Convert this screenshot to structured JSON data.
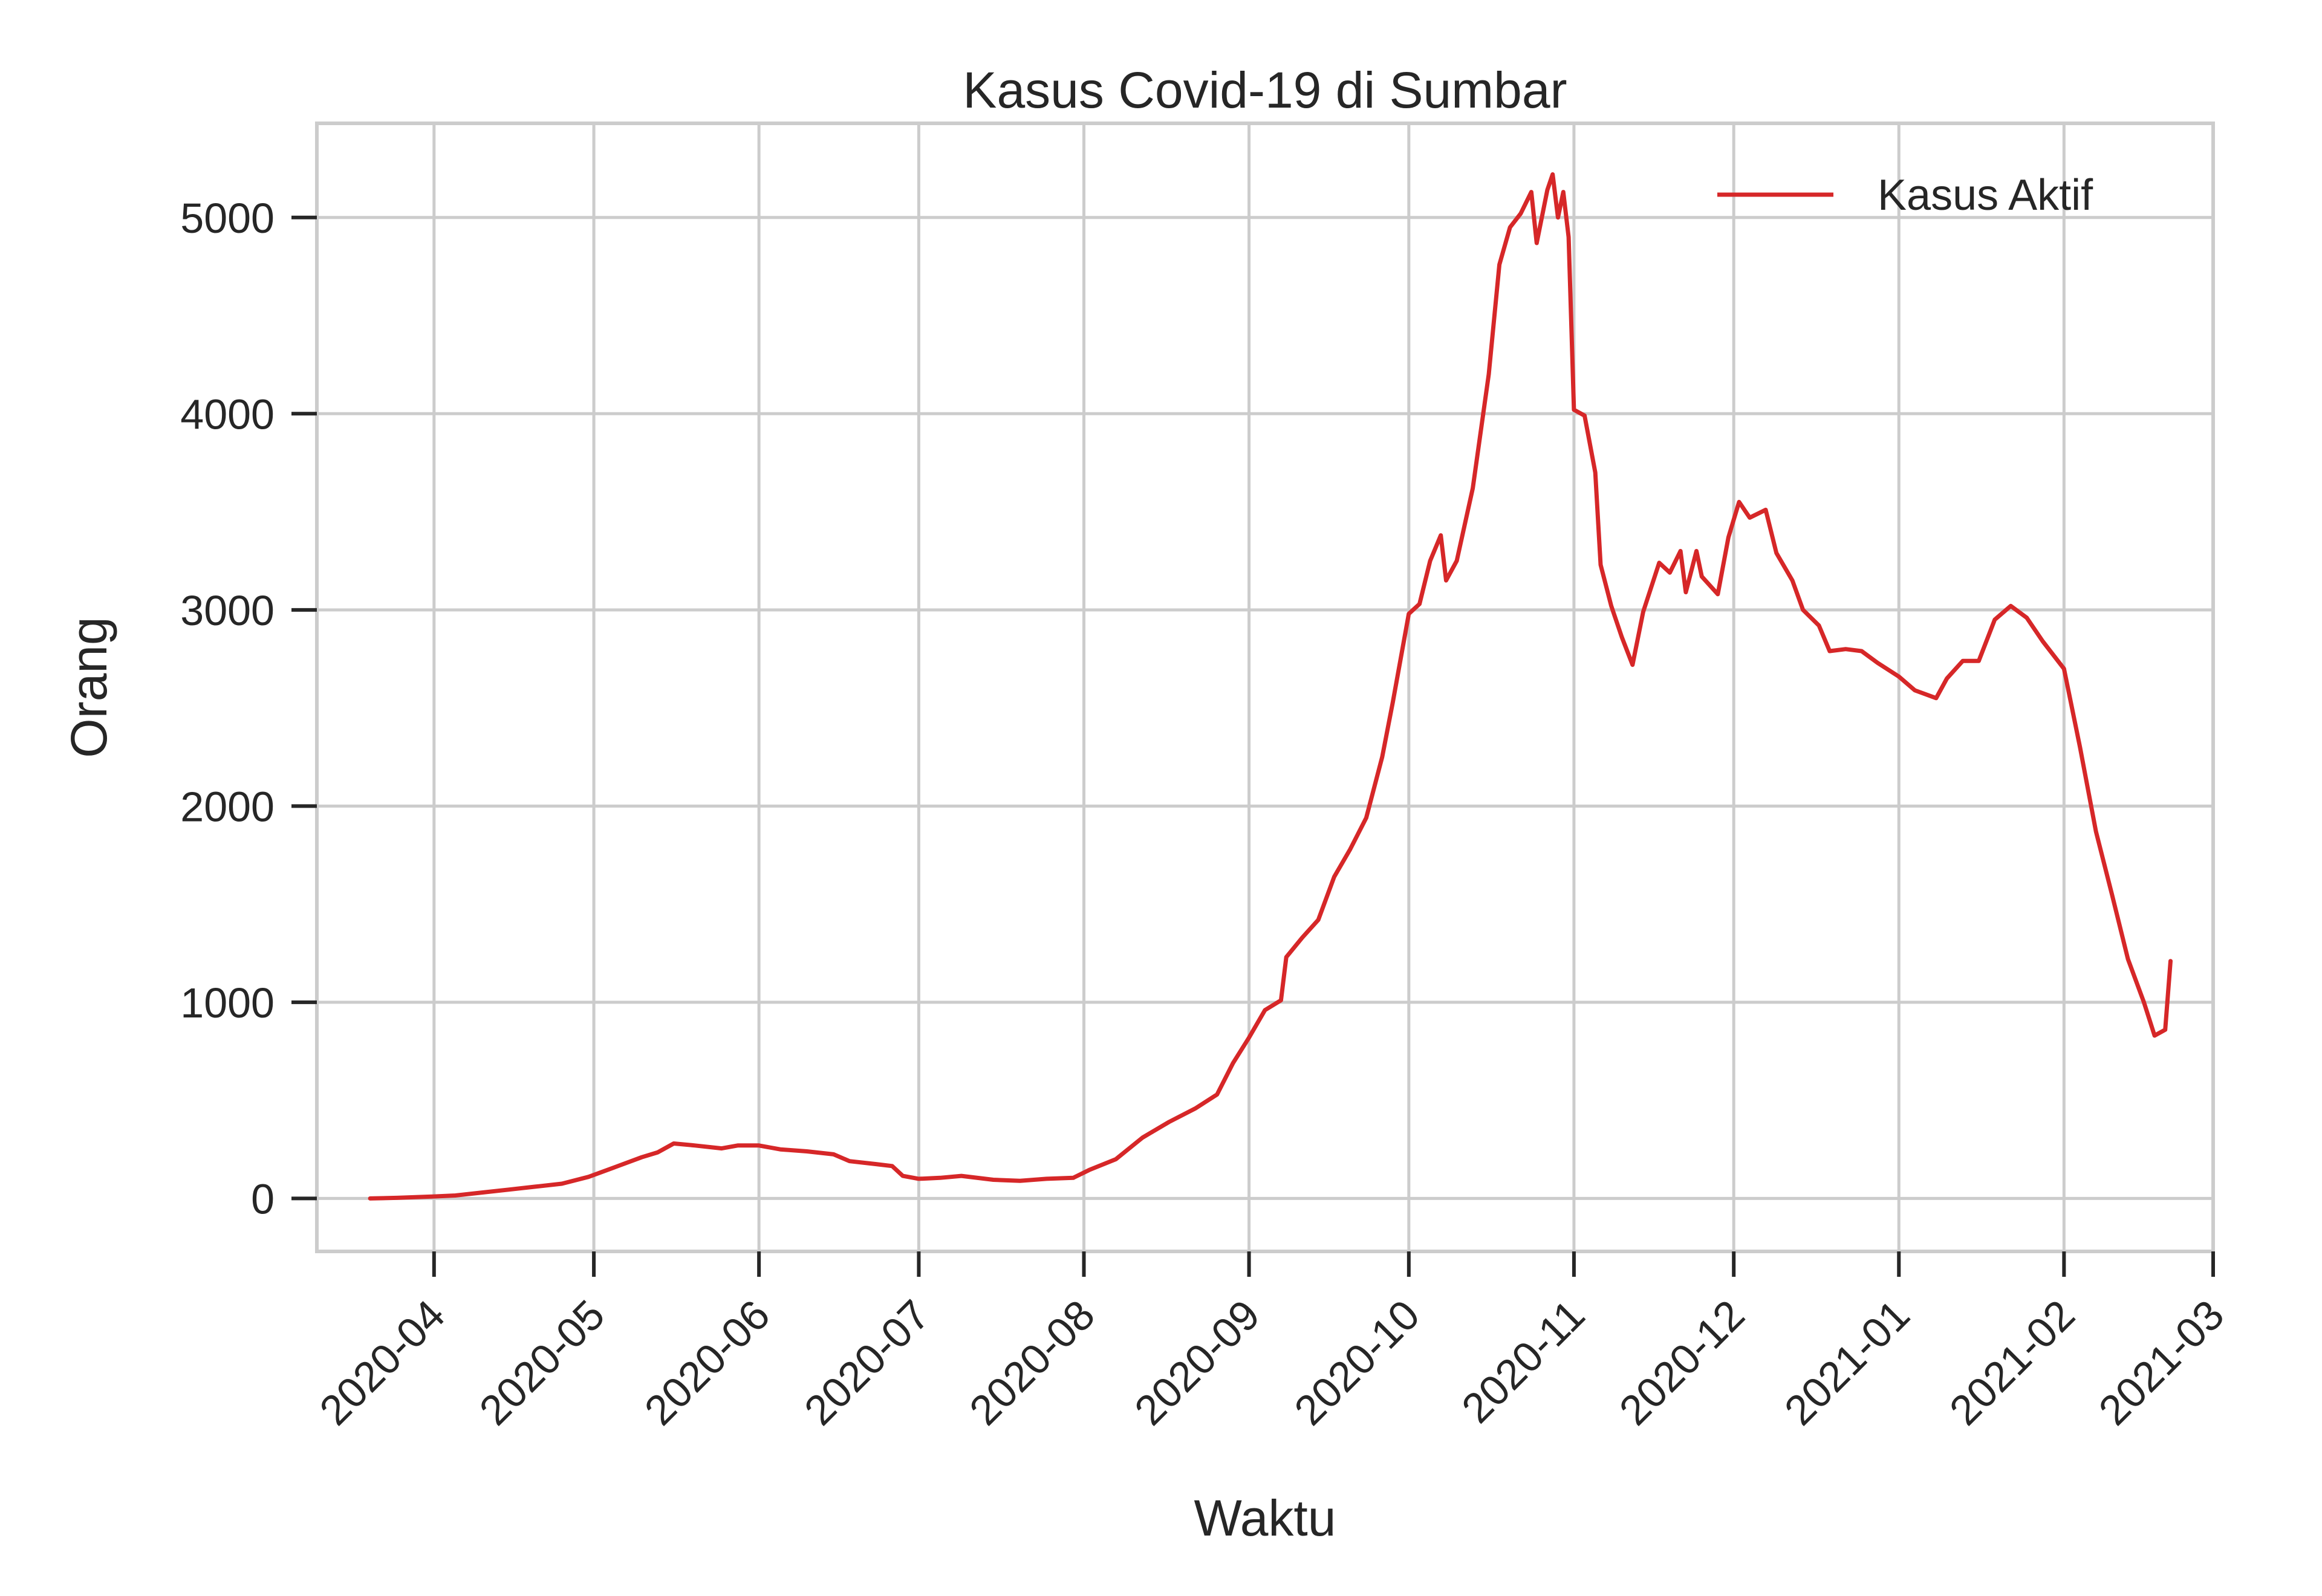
{
  "chart_data": {
    "type": "line",
    "title": "Kasus Covid-19 di Sumbar",
    "xlabel": "Waktu",
    "ylabel": "Orang",
    "x_ticks": [
      "2020-04",
      "2020-05",
      "2020-06",
      "2020-07",
      "2020-08",
      "2020-09",
      "2020-10",
      "2020-11",
      "2020-12",
      "2021-01",
      "2021-02",
      "2021-03"
    ],
    "y_ticks": [
      0,
      1000,
      2000,
      3000,
      4000,
      5000
    ],
    "xlim": [
      "2020-03-10",
      "2021-03-01"
    ],
    "ylim": [
      -270,
      5480
    ],
    "grid": true,
    "legend": {
      "position": "top-right"
    },
    "series": [
      {
        "name": "Kasus Aktif",
        "color": "#d62728",
        "points": [
          [
            "2020-03-20",
            0
          ],
          [
            "2020-03-25",
            3
          ],
          [
            "2020-04-01",
            10
          ],
          [
            "2020-04-05",
            15
          ],
          [
            "2020-04-10",
            30
          ],
          [
            "2020-04-15",
            45
          ],
          [
            "2020-04-20",
            60
          ],
          [
            "2020-04-25",
            75
          ],
          [
            "2020-04-30",
            110
          ],
          [
            "2020-05-05",
            160
          ],
          [
            "2020-05-10",
            210
          ],
          [
            "2020-05-13",
            235
          ],
          [
            "2020-05-16",
            280
          ],
          [
            "2020-05-20",
            270
          ],
          [
            "2020-05-25",
            255
          ],
          [
            "2020-05-28",
            270
          ],
          [
            "2020-06-01",
            270
          ],
          [
            "2020-06-05",
            250
          ],
          [
            "2020-06-10",
            240
          ],
          [
            "2020-06-15",
            225
          ],
          [
            "2020-06-18",
            190
          ],
          [
            "2020-06-23",
            175
          ],
          [
            "2020-06-26",
            165
          ],
          [
            "2020-06-28",
            115
          ],
          [
            "2020-07-01",
            100
          ],
          [
            "2020-07-05",
            105
          ],
          [
            "2020-07-09",
            115
          ],
          [
            "2020-07-15",
            95
          ],
          [
            "2020-07-20",
            90
          ],
          [
            "2020-07-25",
            100
          ],
          [
            "2020-07-30",
            105
          ],
          [
            "2020-08-02",
            145
          ],
          [
            "2020-08-07",
            200
          ],
          [
            "2020-08-12",
            310
          ],
          [
            "2020-08-17",
            390
          ],
          [
            "2020-08-22",
            460
          ],
          [
            "2020-08-26",
            530
          ],
          [
            "2020-08-29",
            690
          ],
          [
            "2020-09-01",
            820
          ],
          [
            "2020-09-04",
            960
          ],
          [
            "2020-09-07",
            1010
          ],
          [
            "2020-09-08",
            1230
          ],
          [
            "2020-09-11",
            1330
          ],
          [
            "2020-09-14",
            1420
          ],
          [
            "2020-09-17",
            1640
          ],
          [
            "2020-09-20",
            1780
          ],
          [
            "2020-09-23",
            1940
          ],
          [
            "2020-09-26",
            2250
          ],
          [
            "2020-09-28",
            2530
          ],
          [
            "2020-10-01",
            2980
          ],
          [
            "2020-10-03",
            3030
          ],
          [
            "2020-10-05",
            3250
          ],
          [
            "2020-10-07",
            3380
          ],
          [
            "2020-10-08",
            3150
          ],
          [
            "2020-10-10",
            3250
          ],
          [
            "2020-10-13",
            3620
          ],
          [
            "2020-10-16",
            4200
          ],
          [
            "2020-10-18",
            4760
          ],
          [
            "2020-10-20",
            4950
          ],
          [
            "2020-10-22",
            5020
          ],
          [
            "2020-10-24",
            5130
          ],
          [
            "2020-10-25",
            4870
          ],
          [
            "2020-10-27",
            5140
          ],
          [
            "2020-10-28",
            5220
          ],
          [
            "2020-10-29",
            5000
          ],
          [
            "2020-10-30",
            5130
          ],
          [
            "2020-10-31",
            4900
          ],
          [
            "2020-11-01",
            4020
          ],
          [
            "2020-11-03",
            3990
          ],
          [
            "2020-11-05",
            3700
          ],
          [
            "2020-11-06",
            3230
          ],
          [
            "2020-11-08",
            3020
          ],
          [
            "2020-11-10",
            2860
          ],
          [
            "2020-11-12",
            2720
          ],
          [
            "2020-11-14",
            2990
          ],
          [
            "2020-11-17",
            3240
          ],
          [
            "2020-11-19",
            3190
          ],
          [
            "2020-11-21",
            3300
          ],
          [
            "2020-11-22",
            3090
          ],
          [
            "2020-11-24",
            3300
          ],
          [
            "2020-11-25",
            3170
          ],
          [
            "2020-11-28",
            3080
          ],
          [
            "2020-11-30",
            3370
          ],
          [
            "2020-12-02",
            3550
          ],
          [
            "2020-12-04",
            3470
          ],
          [
            "2020-12-07",
            3510
          ],
          [
            "2020-12-09",
            3290
          ],
          [
            "2020-12-12",
            3150
          ],
          [
            "2020-12-14",
            3000
          ],
          [
            "2020-12-17",
            2920
          ],
          [
            "2020-12-19",
            2790
          ],
          [
            "2020-12-22",
            2800
          ],
          [
            "2020-12-25",
            2790
          ],
          [
            "2020-12-28",
            2730
          ],
          [
            "2021-01-01",
            2660
          ],
          [
            "2021-01-04",
            2590
          ],
          [
            "2021-01-08",
            2550
          ],
          [
            "2021-01-10",
            2650
          ],
          [
            "2021-01-13",
            2740
          ],
          [
            "2021-01-16",
            2740
          ],
          [
            "2021-01-19",
            2950
          ],
          [
            "2021-01-22",
            3020
          ],
          [
            "2021-01-25",
            2960
          ],
          [
            "2021-01-28",
            2840
          ],
          [
            "2021-02-01",
            2700
          ],
          [
            "2021-02-04",
            2300
          ],
          [
            "2021-02-07",
            1870
          ],
          [
            "2021-02-10",
            1550
          ],
          [
            "2021-02-13",
            1220
          ],
          [
            "2021-02-16",
            1000
          ],
          [
            "2021-02-18",
            830
          ],
          [
            "2021-02-20",
            860
          ],
          [
            "2021-02-21",
            1210
          ]
        ]
      }
    ]
  }
}
